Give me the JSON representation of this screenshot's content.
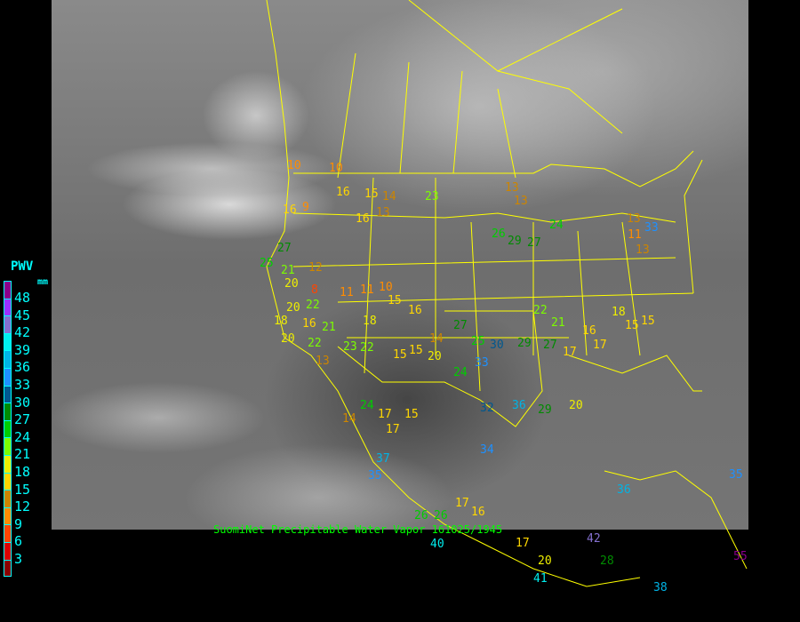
{
  "legend": {
    "title": "PWV",
    "unit": "mm",
    "labels": [
      "48",
      "45",
      "42",
      "39",
      "36",
      "33",
      "30",
      "27",
      "24",
      "21",
      "18",
      "15",
      "12",
      "9",
      "6",
      "3"
    ],
    "colors": [
      "#8b008b",
      "#9b30ff",
      "#8470d0",
      "#00eeee",
      "#00b4e6",
      "#1e90ff",
      "#00588f",
      "#008b00",
      "#00cd00",
      "#7cfc00",
      "#eeee00",
      "#ffd700",
      "#cd8500",
      "#ff8c00",
      "#ff4500",
      "#dc0000",
      "#8b0000"
    ]
  },
  "caption": "SuomiNet Precipitable Water Vapor 161025/1945",
  "boundary_color": "#ffff00",
  "stations": [
    "10",
    "10",
    "16",
    "16",
    "13",
    "23",
    "13",
    "16",
    "9",
    "14",
    "13",
    "15",
    "13",
    "27",
    "25",
    "24",
    "26",
    "29",
    "27",
    "20",
    "21",
    "20",
    "22",
    "12",
    "11",
    "11",
    "10",
    "15",
    "16",
    "15",
    "18",
    "18",
    "16",
    "21",
    "22",
    "23",
    "20",
    "22",
    "14",
    "20",
    "25",
    "30",
    "33",
    "29",
    "27",
    "29",
    "22",
    "21",
    "17",
    "20",
    "15",
    "15",
    "14",
    "17",
    "16",
    "17",
    "18",
    "8",
    "13",
    "27",
    "24",
    "17",
    "15",
    "26",
    "35",
    "37",
    "34",
    "36",
    "35",
    "17",
    "16",
    "26",
    "42",
    "40",
    "28",
    "20",
    "41",
    "38",
    "33",
    "55",
    "17",
    "32",
    "36",
    "11",
    "13",
    "15",
    "24"
  ]
}
